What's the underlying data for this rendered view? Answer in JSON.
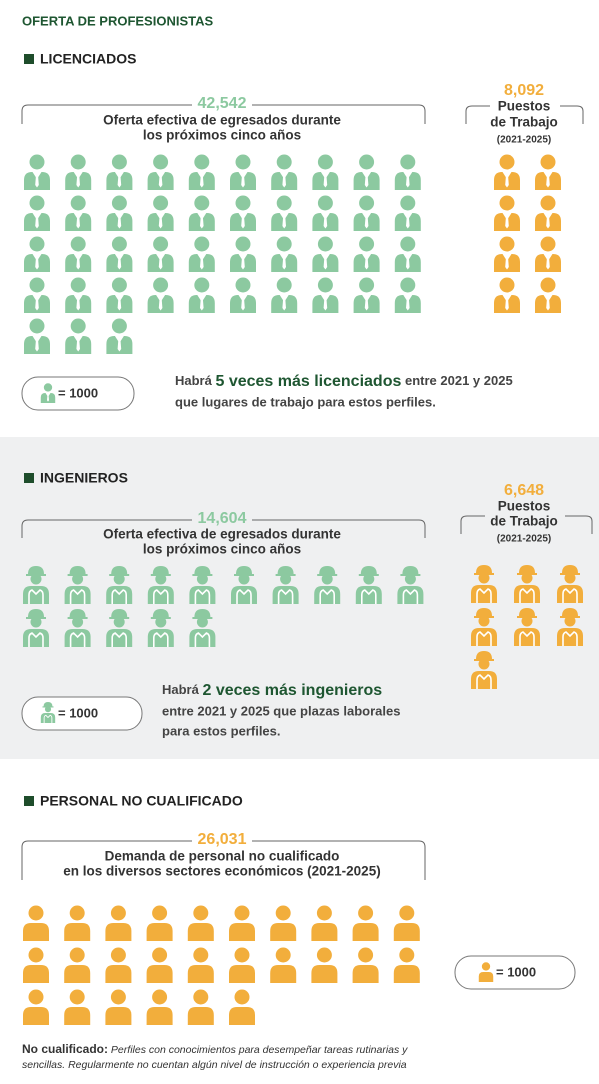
{
  "header": {
    "title": "OFERTA DE PROFESIONISTAS"
  },
  "sections": [
    {
      "title": "LICENCIADOS",
      "supply": {
        "value": "42,542",
        "lines": [
          "Oferta efectiva de egresados durante",
          "los próximos cinco años"
        ]
      },
      "jobs": {
        "value": "8,092",
        "lines": [
          "Puestos",
          "de Trabajo"
        ],
        "period": "(2021-2025)"
      },
      "legend": "= 1000",
      "note": {
        "before": "Habrá ",
        "highlight": "5 veces más licenciados",
        "after": " entre 2021 y 2025",
        "rest": [
          "que lugares de trabajo para estos perfiles."
        ]
      }
    },
    {
      "title": "INGENIEROS",
      "supply": {
        "value": "14,604",
        "lines": [
          "Oferta efectiva de egresados durante",
          "los próximos cinco años"
        ]
      },
      "jobs": {
        "value": "6,648",
        "lines": [
          "Puestos",
          "de Trabajo"
        ],
        "period": "(2021-2025)"
      },
      "legend": "= 1000",
      "note": {
        "before": "Habrá ",
        "highlight": "2 veces más ingenieros",
        "after": "",
        "rest": [
          "entre 2021 y 2025 que plazas laborales",
          "para estos perfiles."
        ]
      }
    },
    {
      "title": "PERSONAL NO CUALIFICADO",
      "supply": {
        "value": "26,031",
        "lines": [
          "Demanda de personal no cualificado",
          "en los diversos sectores económicos (2021-2025)"
        ]
      },
      "legend": "= 1000"
    }
  ],
  "footnote": {
    "term": "No cualificado:",
    "lines": [
      " Perfiles con conocimientos para desempeñar tareas rutinarias y",
      "sencillas. Regularmente no cuentan algún nivel de instrucción o experiencia previa"
    ]
  }
}
